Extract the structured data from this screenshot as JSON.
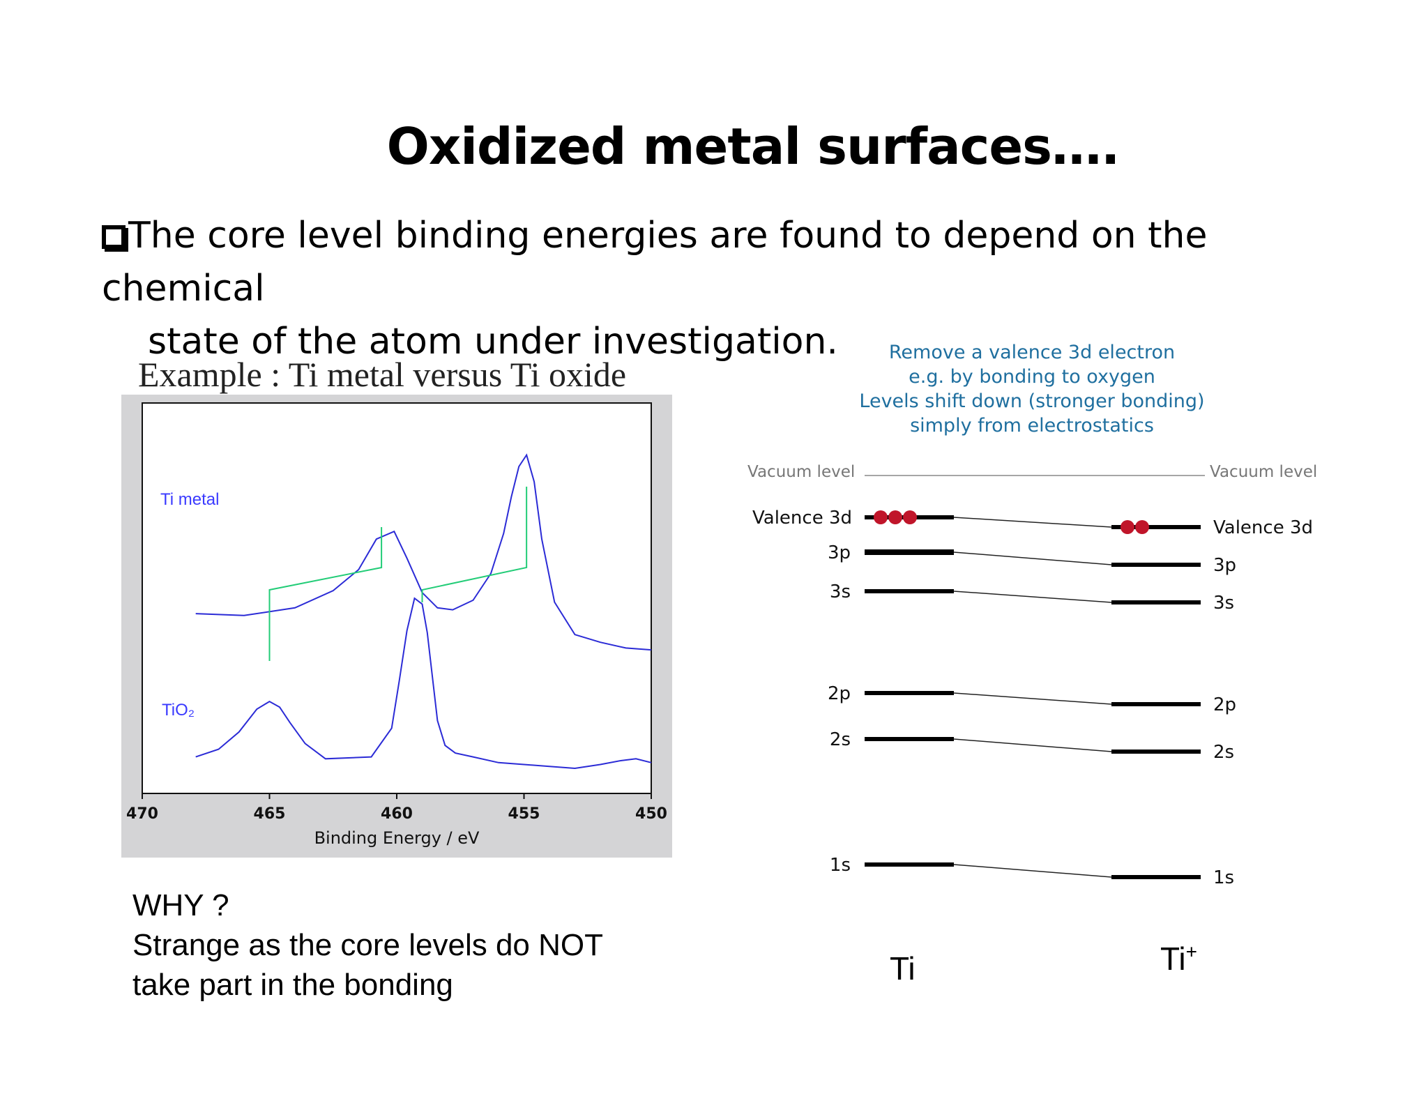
{
  "slide": {
    "title": "Oxidized metal surfaces….",
    "bullet_line1": "The core level binding energies are found to depend on the chemical",
    "bullet_line2": "state of the atom under investigation."
  },
  "example": {
    "title": "Example : Ti metal versus Ti oxide"
  },
  "chart_data": {
    "type": "line",
    "xlabel": "Binding Energy / eV",
    "ylabel": "",
    "xlim": [
      470,
      450
    ],
    "x_reversed": true,
    "x_ticks": [
      "470",
      "465",
      "460",
      "455",
      "450"
    ],
    "series": [
      {
        "name": "Ti metal",
        "color": "#2b2bd6",
        "x": [
          467.9,
          466.0,
          464.0,
          462.5,
          461.5,
          460.8,
          460.1,
          459.6,
          459.0,
          458.4,
          457.8,
          457.0,
          456.3,
          455.8,
          455.5,
          455.2,
          454.9,
          454.6,
          454.3,
          453.8,
          453.0,
          452.0,
          451.0,
          450.0
        ],
        "y": [
          0.05,
          0.04,
          0.08,
          0.17,
          0.28,
          0.44,
          0.48,
          0.34,
          0.16,
          0.08,
          0.07,
          0.12,
          0.26,
          0.47,
          0.66,
          0.82,
          0.88,
          0.74,
          0.44,
          0.11,
          -0.06,
          -0.1,
          -0.13,
          -0.14
        ]
      },
      {
        "name": "TiO2",
        "color": "#2b2bd6",
        "x": [
          467.9,
          467.0,
          466.2,
          465.5,
          465.0,
          464.6,
          464.2,
          463.6,
          462.8,
          461.0,
          460.2,
          459.9,
          459.6,
          459.3,
          459.0,
          458.8,
          458.6,
          458.4,
          458.1,
          457.7,
          457.0,
          456.0,
          455.0,
          454.0,
          453.0,
          452.0,
          451.2,
          450.6,
          450.0
        ],
        "y": [
          -0.7,
          -0.66,
          -0.57,
          -0.45,
          -0.41,
          -0.44,
          -0.52,
          -0.63,
          -0.71,
          -0.7,
          -0.55,
          -0.3,
          -0.04,
          0.13,
          0.1,
          -0.05,
          -0.28,
          -0.51,
          -0.64,
          -0.68,
          -0.7,
          -0.73,
          -0.74,
          -0.75,
          -0.76,
          -0.74,
          -0.72,
          -0.71,
          -0.73
        ]
      }
    ],
    "annotations": [
      {
        "text": "Ti metal",
        "color": "#3a3aff"
      },
      {
        "text": "TiO₂",
        "color": "#3a3aff"
      }
    ],
    "shift_markers": {
      "color": "#22cc77",
      "pairs": [
        {
          "from_x": 465.0,
          "to_x": 460.6
        },
        {
          "from_x": 459.0,
          "to_x": 454.9
        }
      ]
    },
    "grid": false
  },
  "why": {
    "line1": "WHY ?",
    "line2": "Strange as the core levels do NOT",
    "line3": "take part in the bonding"
  },
  "levels": {
    "caption": [
      "Remove a valence 3d electron",
      "e.g. by bonding to oxygen",
      "Levels shift down (stronger bonding)",
      "simply from electrostatics"
    ],
    "vacuum_left": "Vacuum level",
    "vacuum_right": "Vacuum level",
    "rows": [
      {
        "left": "Valence 3d",
        "right": "Valence 3d",
        "electrons_left": 3,
        "electrons_right": 2
      },
      {
        "left": "3p",
        "right": "3p"
      },
      {
        "left": "3s",
        "right": "3s"
      },
      {
        "left": "2p",
        "right": "2p"
      },
      {
        "left": "2s",
        "right": "2s"
      },
      {
        "left": "1s",
        "right": "1s"
      }
    ],
    "atom_left": "Ti",
    "atom_right": "Ti",
    "atom_right_sup": "+",
    "electron_color": "#c0152a",
    "caption_color": "#1f6f9f"
  }
}
